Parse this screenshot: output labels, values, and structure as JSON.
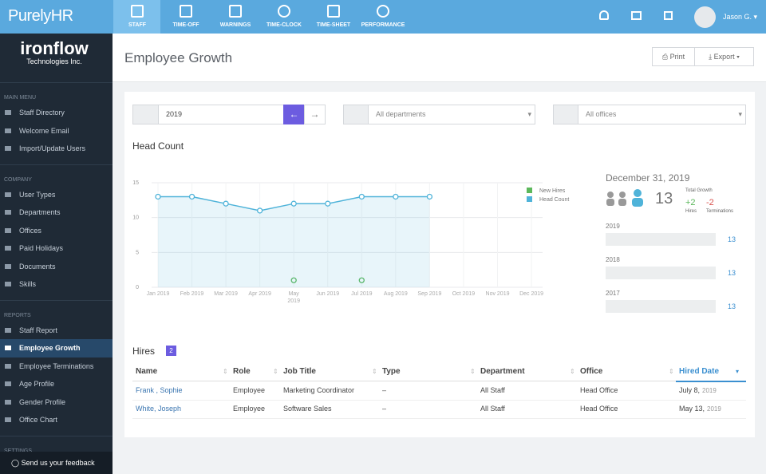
{
  "topbar": {
    "logo": "PurelyHR",
    "nav": [
      "STAFF",
      "TIME-OFF",
      "WARNINGS",
      "TIME-CLOCK",
      "TIME-SHEET",
      "PERFORMANCE"
    ],
    "user": "Jason G."
  },
  "sidebar": {
    "company_name": "ironflow",
    "company_sub": "Technologies Inc.",
    "sections": [
      {
        "label": "MAIN MENU",
        "items": [
          "Staff Directory",
          "Welcome Email",
          "Import/Update Users"
        ]
      },
      {
        "label": "COMPANY",
        "items": [
          "User Types",
          "Departments",
          "Offices",
          "Paid Holidays",
          "Documents",
          "Skills"
        ]
      },
      {
        "label": "REPORTS",
        "items": [
          "Staff Report",
          "Employee Growth",
          "Employee Terminations",
          "Age Profile",
          "Gender Profile",
          "Office Chart"
        ]
      },
      {
        "label": "SETTINGS",
        "items": []
      }
    ],
    "active": "Employee Growth",
    "feedback": "Send us your feedback"
  },
  "header": {
    "title": "Employee Growth",
    "print": "Print",
    "export": "Export"
  },
  "filters": {
    "year": "2019",
    "department": "All departments",
    "office": "All offices"
  },
  "chart_data": {
    "type": "line",
    "title": "Head Count",
    "categories": [
      "Jan 2019",
      "Feb 2019",
      "Mar 2019",
      "Apr 2019",
      "May 2019",
      "Jun 2019",
      "Jul 2019",
      "Aug 2019",
      "Sep 2019",
      "Oct 2019",
      "Nov 2019",
      "Dec 2019"
    ],
    "series": [
      {
        "name": "New Hires",
        "color": "#5cb85c",
        "values": [
          null,
          null,
          null,
          null,
          1,
          null,
          1,
          null,
          null,
          null,
          null,
          null
        ]
      },
      {
        "name": "Head Count",
        "color": "#4fb3d9",
        "values": [
          13,
          13,
          12,
          11,
          12,
          12,
          13,
          13,
          13,
          null,
          null,
          null
        ]
      }
    ],
    "ylim": [
      0,
      15
    ],
    "yticks": [
      0,
      5,
      10,
      15
    ],
    "grid": true,
    "legend": "top-right"
  },
  "summary": {
    "date": "December 31, 2019",
    "headcount": "13",
    "total_growth": "Total Growth",
    "hires": "+2",
    "hires_label": "Hires",
    "terminations": "-2",
    "terminations_label": "Terminations",
    "years": [
      {
        "year": "2019",
        "count": "13"
      },
      {
        "year": "2018",
        "count": "13"
      },
      {
        "year": "2017",
        "count": "13"
      }
    ]
  },
  "hires": {
    "title": "Hires",
    "count": "2",
    "columns": [
      "Name",
      "Role",
      "Job Title",
      "Type",
      "Department",
      "Office",
      "Hired Date"
    ],
    "rows": [
      [
        "Frank , Sophie",
        "Employee",
        "Marketing Coordinator",
        "–",
        "All Staff",
        "Head Office",
        "July 8,",
        "2019"
      ],
      [
        "White, Joseph",
        "Employee",
        "Software Sales",
        "–",
        "All Staff",
        "Head Office",
        "May 13,",
        "2019"
      ]
    ]
  }
}
